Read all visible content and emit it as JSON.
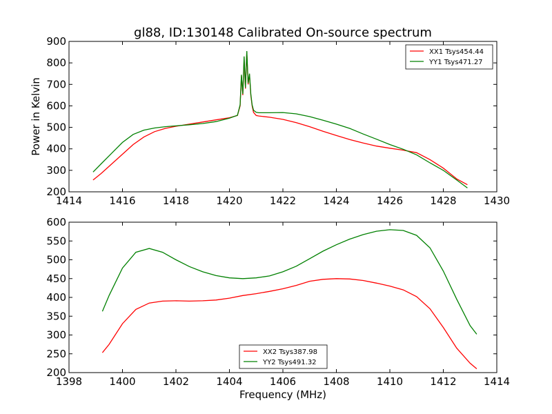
{
  "title": "gl88, ID:130148 Calibrated On-source spectrum",
  "colors": {
    "red": "#ff0000",
    "green": "#008000"
  },
  "chart_data": [
    {
      "type": "line",
      "ylabel": "Power in Kelvin",
      "xlabel": "",
      "xlim": [
        1414,
        1430
      ],
      "ylim": [
        200,
        900
      ],
      "xticks": [
        1414,
        1416,
        1418,
        1420,
        1422,
        1424,
        1426,
        1428,
        1430
      ],
      "yticks": [
        200,
        300,
        400,
        500,
        600,
        700,
        800,
        900
      ],
      "legend_position": "top-right",
      "series": [
        {
          "name": "XX1 Tsys454.44",
          "color": "#ff0000",
          "x": [
            1414.9,
            1415.2,
            1415.6,
            1416.0,
            1416.4,
            1416.8,
            1417.2,
            1417.6,
            1418.0,
            1418.5,
            1419.0,
            1419.5,
            1420.0,
            1420.3,
            1420.4,
            1420.45,
            1420.5,
            1420.55,
            1420.6,
            1420.65,
            1420.7,
            1420.75,
            1420.8,
            1420.85,
            1420.9,
            1421.0,
            1421.1,
            1421.5,
            1422.0,
            1422.5,
            1423.0,
            1423.5,
            1424.0,
            1424.5,
            1425.0,
            1425.5,
            1426.0,
            1426.5,
            1427.0,
            1427.5,
            1428.0,
            1428.5,
            1428.9
          ],
          "y": [
            255,
            285,
            330,
            375,
            420,
            455,
            480,
            495,
            505,
            515,
            525,
            535,
            545,
            555,
            600,
            740,
            650,
            820,
            680,
            850,
            700,
            745,
            650,
            600,
            570,
            555,
            553,
            547,
            537,
            522,
            503,
            482,
            462,
            443,
            427,
            413,
            403,
            394,
            382,
            350,
            310,
            260,
            233
          ]
        },
        {
          "name": "YY1 Tsys471.27",
          "color": "#008000",
          "x": [
            1414.9,
            1415.2,
            1415.6,
            1416.0,
            1416.4,
            1416.8,
            1417.2,
            1417.6,
            1418.0,
            1418.5,
            1419.0,
            1419.5,
            1420.0,
            1420.3,
            1420.4,
            1420.45,
            1420.5,
            1420.55,
            1420.6,
            1420.65,
            1420.7,
            1420.75,
            1420.8,
            1420.85,
            1420.9,
            1421.0,
            1421.1,
            1421.5,
            1422.0,
            1422.5,
            1423.0,
            1423.5,
            1424.0,
            1424.5,
            1425.0,
            1425.5,
            1426.0,
            1426.5,
            1427.0,
            1427.5,
            1428.0,
            1428.5,
            1428.9
          ],
          "y": [
            292,
            330,
            380,
            430,
            467,
            487,
            497,
            503,
            507,
            512,
            518,
            527,
            543,
            556,
            605,
            745,
            655,
            830,
            685,
            855,
            705,
            750,
            655,
            605,
            580,
            570,
            568,
            568,
            569,
            563,
            550,
            533,
            515,
            495,
            469,
            445,
            420,
            398,
            372,
            335,
            300,
            255,
            218
          ]
        }
      ]
    },
    {
      "type": "line",
      "ylabel": "",
      "xlabel": "Frequency (MHz)",
      "xlim": [
        1398,
        1414
      ],
      "ylim": [
        200,
        600
      ],
      "xticks": [
        1398,
        1400,
        1402,
        1404,
        1406,
        1408,
        1410,
        1412,
        1414
      ],
      "yticks": [
        200,
        250,
        300,
        350,
        400,
        450,
        500,
        550,
        600
      ],
      "legend_position": "bottom-center",
      "series": [
        {
          "name": "XX2 Tsys387.98",
          "color": "#ff0000",
          "x": [
            1399.25,
            1399.5,
            1400.0,
            1400.5,
            1401.0,
            1401.5,
            1402.0,
            1402.5,
            1403.0,
            1403.5,
            1404.0,
            1404.5,
            1405.0,
            1405.5,
            1406.0,
            1406.5,
            1407.0,
            1407.5,
            1408.0,
            1408.5,
            1409.0,
            1409.5,
            1410.0,
            1410.5,
            1411.0,
            1411.5,
            1412.0,
            1412.5,
            1413.0,
            1413.25
          ],
          "y": [
            253,
            275,
            330,
            368,
            385,
            390,
            391,
            390,
            391,
            393,
            398,
            405,
            410,
            416,
            423,
            432,
            443,
            448,
            450,
            449,
            445,
            438,
            430,
            420,
            402,
            370,
            320,
            265,
            225,
            210
          ]
        },
        {
          "name": "YY2 Tsys491.32",
          "color": "#008000",
          "x": [
            1399.25,
            1399.5,
            1400.0,
            1400.5,
            1401.0,
            1401.5,
            1402.0,
            1402.5,
            1403.0,
            1403.5,
            1404.0,
            1404.5,
            1405.0,
            1405.5,
            1406.0,
            1406.5,
            1407.0,
            1407.5,
            1408.0,
            1408.5,
            1409.0,
            1409.5,
            1410.0,
            1410.5,
            1411.0,
            1411.5,
            1412.0,
            1412.5,
            1413.0,
            1413.25
          ],
          "y": [
            363,
            405,
            478,
            520,
            530,
            520,
            500,
            482,
            468,
            458,
            452,
            450,
            452,
            457,
            468,
            483,
            503,
            523,
            540,
            555,
            567,
            576,
            580,
            578,
            565,
            532,
            470,
            395,
            325,
            302
          ]
        }
      ]
    }
  ]
}
